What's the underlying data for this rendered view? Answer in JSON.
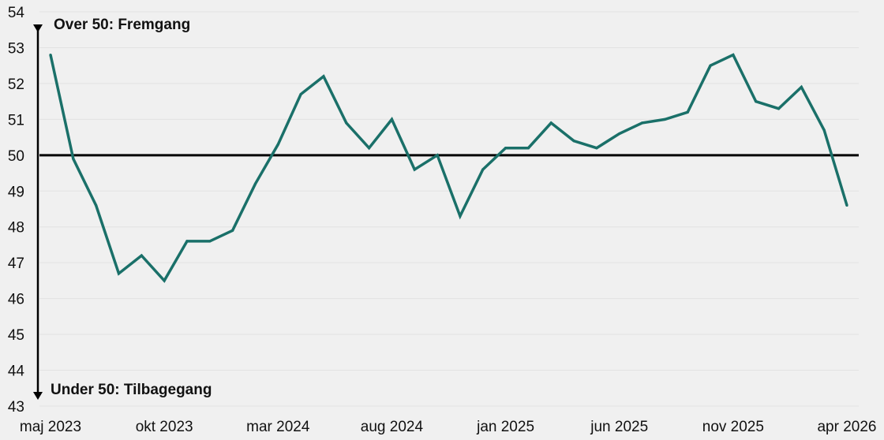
{
  "chart_data": {
    "type": "line",
    "title": "",
    "xlabel": "",
    "ylabel": "",
    "ylim": [
      43,
      54
    ],
    "yticks": [
      43,
      44,
      45,
      46,
      47,
      48,
      49,
      50,
      51,
      52,
      53,
      54
    ],
    "grid": true,
    "reference_line": 50,
    "annotations": {
      "upper": "Over 50: Fremgang",
      "lower": "Under 50: Tilbagegang"
    },
    "x": [
      "maj 2023",
      "jun 2023",
      "jul 2023",
      "aug 2023",
      "sep 2023",
      "okt 2023",
      "nov 2023",
      "dec 2023",
      "jan 2024",
      "feb 2024",
      "mar 2024",
      "apr 2024",
      "maj 2024",
      "jun 2024",
      "jul 2024",
      "aug 2024",
      "sep 2024",
      "okt 2024",
      "nov 2024",
      "dec 2024",
      "jan 2025",
      "feb 2025",
      "mar 2025",
      "apr 2025",
      "maj 2025",
      "jun 2025",
      "jul 2025",
      "aug 2025",
      "sep 2025",
      "okt 2025",
      "nov 2025",
      "dec 2025",
      "jan 2026",
      "feb 2026",
      "mar 2026",
      "apr 2026"
    ],
    "x_tick_labels": [
      {
        "index": 0,
        "label": "maj 2023"
      },
      {
        "index": 5,
        "label": "okt 2023"
      },
      {
        "index": 10,
        "label": "mar 2024"
      },
      {
        "index": 15,
        "label": "aug 2024"
      },
      {
        "index": 20,
        "label": "jan 2025"
      },
      {
        "index": 25,
        "label": "jun 2025"
      },
      {
        "index": 30,
        "label": "nov 2025"
      },
      {
        "index": 35,
        "label": "apr 2026"
      }
    ],
    "series": [
      {
        "values": [
          52.8,
          49.9,
          48.6,
          46.7,
          47.2,
          46.5,
          47.6,
          47.6,
          47.9,
          49.2,
          50.3,
          51.7,
          52.2,
          50.9,
          50.2,
          51.0,
          49.6,
          50.0,
          48.3,
          49.6,
          50.2,
          50.2,
          50.9,
          50.4,
          50.2,
          50.6,
          50.9,
          51.0,
          51.2,
          52.5,
          52.8,
          51.5,
          51.3,
          51.9,
          50.7,
          48.6
        ],
        "color": "#1a7069"
      }
    ],
    "colors": {
      "line": "#1a7069",
      "reference": "#000000",
      "axis": "#000000",
      "background": "#f0f0f0"
    }
  }
}
